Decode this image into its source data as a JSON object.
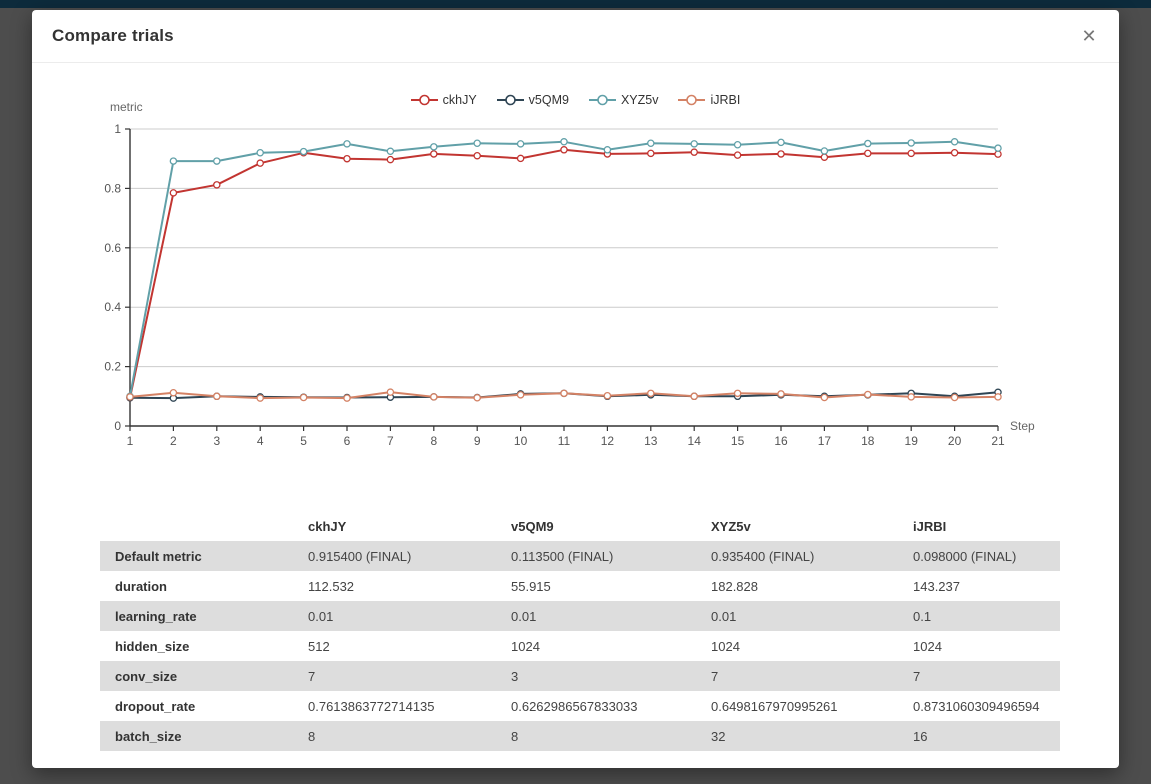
{
  "modal": {
    "title": "Compare trials",
    "close_glyph": "✕"
  },
  "chart_data": {
    "type": "line",
    "title": "",
    "xlabel": "Step",
    "ylabel": "metric",
    "x": [
      1,
      2,
      3,
      4,
      5,
      6,
      7,
      8,
      9,
      10,
      11,
      12,
      13,
      14,
      15,
      16,
      17,
      18,
      19,
      20,
      21
    ],
    "xlim": [
      1,
      21
    ],
    "ylim": [
      0,
      1
    ],
    "y_ticks": [
      0,
      0.2,
      0.4,
      0.6,
      0.8,
      1
    ],
    "grid": true,
    "legend_position": "top",
    "series": [
      {
        "name": "ckhJY",
        "color": "#c23531",
        "values": [
          0.095,
          0.785,
          0.812,
          0.885,
          0.92,
          0.9,
          0.897,
          0.916,
          0.91,
          0.901,
          0.93,
          0.916,
          0.918,
          0.922,
          0.912,
          0.916,
          0.905,
          0.918,
          0.918,
          0.92,
          0.9154
        ]
      },
      {
        "name": "v5QM9",
        "color": "#2f4554",
        "values": [
          0.095,
          0.094,
          0.1,
          0.098,
          0.097,
          0.096,
          0.097,
          0.098,
          0.096,
          0.108,
          0.11,
          0.1,
          0.105,
          0.1,
          0.1,
          0.105,
          0.1,
          0.105,
          0.11,
          0.1,
          0.1135
        ]
      },
      {
        "name": "XYZ5v",
        "color": "#61a0a8",
        "values": [
          0.1,
          0.892,
          0.892,
          0.92,
          0.924,
          0.95,
          0.925,
          0.94,
          0.952,
          0.95,
          0.957,
          0.93,
          0.952,
          0.95,
          0.947,
          0.955,
          0.926,
          0.951,
          0.953,
          0.957,
          0.9354
        ]
      },
      {
        "name": "iJRBI",
        "color": "#d48265",
        "values": [
          0.098,
          0.112,
          0.1,
          0.094,
          0.096,
          0.094,
          0.114,
          0.098,
          0.095,
          0.105,
          0.11,
          0.102,
          0.11,
          0.1,
          0.11,
          0.108,
          0.096,
          0.106,
          0.098,
          0.096,
          0.098
        ]
      }
    ]
  },
  "table": {
    "columns": [
      "",
      "ckhJY",
      "v5QM9",
      "XYZ5v",
      "iJRBI"
    ],
    "rows": [
      {
        "label": "Default metric",
        "values": [
          "0.915400 (FINAL)",
          "0.113500 (FINAL)",
          "0.935400 (FINAL)",
          "0.098000 (FINAL)"
        ]
      },
      {
        "label": "duration",
        "values": [
          "112.532",
          "55.915",
          "182.828",
          "143.237"
        ]
      },
      {
        "label": "learning_rate",
        "values": [
          "0.01",
          "0.01",
          "0.01",
          "0.1"
        ]
      },
      {
        "label": "hidden_size",
        "values": [
          "512",
          "1024",
          "1024",
          "1024"
        ]
      },
      {
        "label": "conv_size",
        "values": [
          "7",
          "3",
          "7",
          "7"
        ]
      },
      {
        "label": "dropout_rate",
        "values": [
          "0.7613863772714135",
          "0.6262986567833033",
          "0.6498167970995261",
          "0.8731060309496594"
        ]
      },
      {
        "label": "batch_size",
        "values": [
          "8",
          "8",
          "32",
          "16"
        ]
      }
    ]
  },
  "colors": {
    "overlay": "#4d4d4d",
    "top_bar": "#0d2b3c",
    "table_stripe": "#dddddd",
    "axis": "#333333",
    "gridline": "#cccccc",
    "tick_text": "#555555",
    "axis_name_text": "#666666"
  }
}
